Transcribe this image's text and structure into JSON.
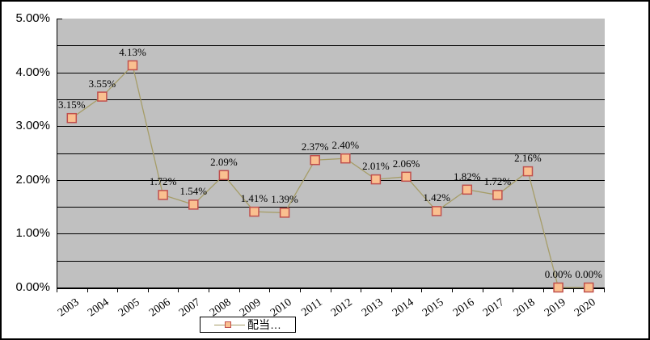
{
  "legend": {
    "label": "配当…"
  },
  "chart_data": {
    "type": "line",
    "title": "",
    "categories": [
      "2003",
      "2004",
      "2005",
      "2006",
      "2007",
      "2008",
      "2009",
      "2010",
      "2011",
      "2012",
      "2013",
      "2014",
      "2015",
      "2016",
      "2017",
      "2018",
      "2019",
      "2020"
    ],
    "series": [
      {
        "name": "配当…",
        "values": [
          3.15,
          3.55,
          4.13,
          1.72,
          1.54,
          2.09,
          1.41,
          1.39,
          2.37,
          2.4,
          2.01,
          2.06,
          1.42,
          1.82,
          1.72,
          2.16,
          0.0,
          0.0
        ],
        "point_labels": [
          "3.15%",
          "3.55%",
          "4.13%",
          "1.72%",
          "1.54%",
          "2.09%",
          "1.41%",
          "1.39%",
          "2.37%",
          "2.40%",
          "2.01%",
          "2.06%",
          "1.42%",
          "1.82%",
          "1.72%",
          "2.16%",
          "0.00%",
          "0.00%"
        ]
      }
    ],
    "xlabel": "",
    "ylabel": "",
    "ylim": [
      0,
      5
    ],
    "y_tick_labels": [
      "5.00%",
      "4.00%",
      "3.00%",
      "2.00%",
      "1.00%",
      "0.00%"
    ],
    "y_tick_values": [
      5,
      4,
      3,
      2,
      1,
      0
    ],
    "grid": true,
    "grid_interval": 0.5,
    "legend_position": "bottom-center",
    "colors": {
      "figure_bg": "#ffffff",
      "figure_border": "#000000",
      "plot_bg": "#c0c0c0",
      "grid": "#000000",
      "line": "#a69d68",
      "marker_fill": "#fac090",
      "marker_border": "#c0504d",
      "text": "#000000"
    }
  }
}
